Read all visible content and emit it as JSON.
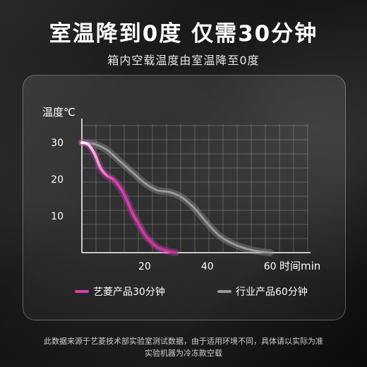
{
  "header": {
    "title": "室温降到0度 仅需30分钟",
    "subtitle": "箱内空载温度由室温降至0度"
  },
  "colors": {
    "brand": "#d63fae",
    "industry": "#9a9a9a"
  },
  "chart_data": {
    "type": "line",
    "ylabel": "温度℃",
    "xlabel": "时间min",
    "x_ticks": [
      20,
      40,
      60
    ],
    "y_ticks": [
      10,
      20,
      30
    ],
    "xlim": [
      0,
      72
    ],
    "ylim": [
      0,
      35
    ],
    "grid": true,
    "legend_position": "bottom",
    "series": [
      {
        "name": "艺菱产品30分钟",
        "color": "#d63fae",
        "x": [
          0,
          2,
          4,
          6,
          8,
          10,
          12,
          14,
          16,
          18,
          20,
          22,
          24,
          26,
          28,
          30
        ],
        "y": [
          30,
          29.5,
          27,
          23,
          21,
          20,
          18,
          15,
          11,
          8,
          5,
          3,
          1.5,
          0.8,
          0.3,
          0
        ]
      },
      {
        "name": "行业产品60分钟",
        "color": "#9a9a9a",
        "x": [
          0,
          4,
          8,
          12,
          16,
          20,
          24,
          28,
          32,
          36,
          40,
          44,
          48,
          52,
          56,
          60
        ],
        "y": [
          30,
          29.6,
          28,
          25,
          22,
          19,
          17,
          16.5,
          15,
          12,
          8,
          4.5,
          2.5,
          1.2,
          0.4,
          0
        ]
      }
    ]
  },
  "footer": {
    "line1": "此数据来源于艺菱技术部实验室测试数据，由于适用环境不同，具体请以实际为准",
    "line2": "实验机器为冷冻款空载"
  }
}
